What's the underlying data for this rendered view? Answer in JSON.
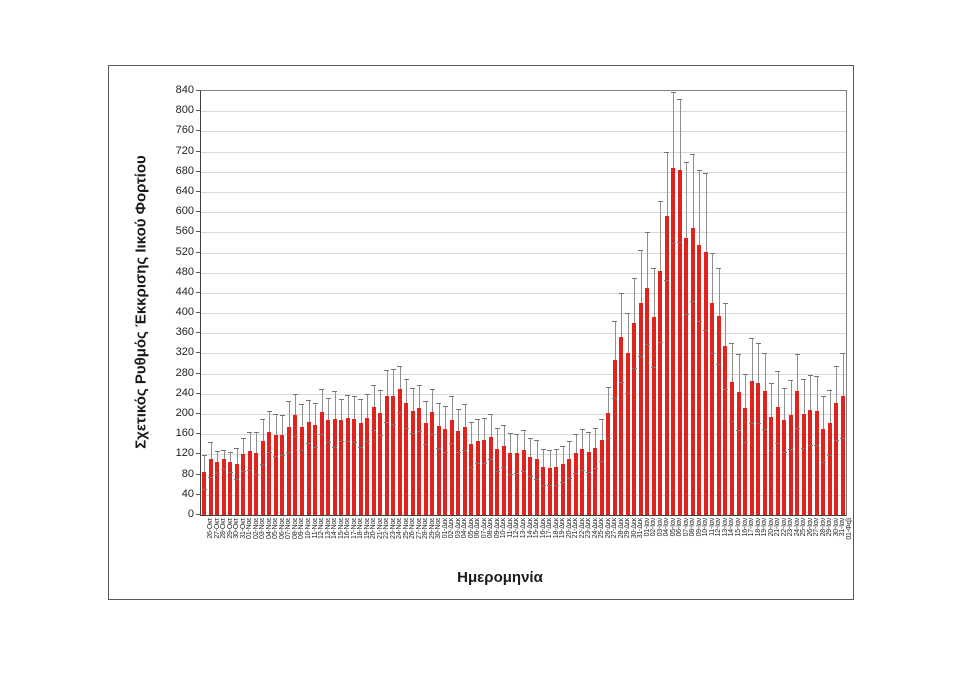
{
  "figure": {
    "background_color": "#ffffff",
    "frame_border_color": "#595959"
  },
  "chart_data": {
    "type": "bar",
    "title": "",
    "xlabel": "Ημερομηνία",
    "ylabel": "Σχετικός Ρυθμός Έκκρισης Ιικού Φορτίου",
    "ylim": [
      0,
      840
    ],
    "ytick_step": 40,
    "grid": true,
    "legend": false,
    "bar_color": "#e0231e",
    "error_bar_color": "#8f8f8f",
    "error_bars": "symmetric, values given as plus-minus deltas",
    "categories": [
      "26-Οκτ",
      "27-Οκτ",
      "28-Οκτ",
      "29-Οκτ",
      "30-Οκτ",
      "31-Οκτ",
      "01-Νοε",
      "02-Νοε",
      "03-Νοε",
      "04-Νοε",
      "05-Νοε",
      "06-Νοε",
      "07-Νοε",
      "08-Νοε",
      "09-Νοε",
      "10-Νοε",
      "11-Νοε",
      "12-Νοε",
      "13-Νοε",
      "14-Νοε",
      "15-Νοε",
      "16-Νοε",
      "17-Νοε",
      "18-Νοε",
      "19-Νοε",
      "20-Νοε",
      "21-Νοε",
      "22-Νοε",
      "23-Νοε",
      "24-Νοε",
      "25-Νοε",
      "26-Νοε",
      "27-Νοε",
      "28-Νοε",
      "29-Νοε",
      "30-Νοε",
      "01-Δεκ",
      "02-Δεκ",
      "03-Δεκ",
      "04-Δεκ",
      "05-Δεκ",
      "06-Δεκ",
      "07-Δεκ",
      "08-Δεκ",
      "09-Δεκ",
      "10-Δεκ",
      "11-Δεκ",
      "12-Δεκ",
      "13-Δεκ",
      "14-Δεκ",
      "15-Δεκ",
      "16-Δεκ",
      "17-Δεκ",
      "18-Δεκ",
      "19-Δεκ",
      "20-Δεκ",
      "21-Δεκ",
      "22-Δεκ",
      "23-Δεκ",
      "24-Δεκ",
      "25-Δεκ",
      "26-Δεκ",
      "27-Δεκ",
      "28-Δεκ",
      "29-Δεκ",
      "30-Δεκ",
      "31-Δεκ",
      "01-Ιαν",
      "02-Ιαν",
      "03-Ιαν",
      "04-Ιαν",
      "05-Ιαν",
      "06-Ιαν",
      "07-Ιαν",
      "08-Ιαν",
      "09-Ιαν",
      "10-Ιαν",
      "11-Ιαν",
      "12-Ιαν",
      "13-Ιαν",
      "14-Ιαν",
      "15-Ιαν",
      "16-Ιαν",
      "17-Ιαν",
      "18-Ιαν",
      "19-Ιαν",
      "20-Ιαν",
      "21-Ιαν",
      "22-Ιαν",
      "23-Ιαν",
      "24-Ιαν",
      "25-Ιαν",
      "26-Ιαν",
      "27-Ιαν",
      "28-Ιαν",
      "29-Ιαν",
      "30-Ιαν",
      "31-Ιαν",
      "01-Φεβ"
    ],
    "values": [
      85,
      110,
      105,
      110,
      105,
      102,
      120,
      127,
      123,
      146,
      165,
      158,
      158,
      175,
      198,
      174,
      185,
      178,
      205,
      188,
      190,
      188,
      192,
      190,
      182,
      193,
      213,
      203,
      236,
      235,
      250,
      221,
      207,
      212,
      183,
      205,
      177,
      170,
      189,
      167,
      174,
      140,
      147,
      148,
      155,
      130,
      137,
      122,
      122,
      128,
      115,
      110,
      95,
      94,
      95,
      101,
      110,
      122,
      130,
      125,
      133,
      148,
      203,
      308,
      352,
      321,
      381,
      420,
      449,
      392,
      483,
      592,
      688,
      683,
      549,
      569,
      534,
      522,
      420,
      395,
      335,
      263,
      243,
      212,
      266,
      261,
      245,
      195,
      214,
      188,
      199,
      245,
      201,
      208,
      207,
      170,
      183,
      222,
      236
    ],
    "error_deltas": [
      33,
      35,
      22,
      18,
      20,
      31,
      32,
      38,
      41,
      44,
      41,
      42,
      40,
      50,
      42,
      46,
      43,
      44,
      45,
      44,
      55,
      42,
      46,
      45,
      48,
      47,
      45,
      45,
      52,
      55,
      45,
      49,
      45,
      46,
      42,
      45,
      45,
      45,
      46,
      43,
      46,
      45,
      43,
      44,
      45,
      42,
      41,
      40,
      38,
      40,
      37,
      38,
      35,
      34,
      35,
      35,
      36,
      38,
      40,
      40,
      39,
      42,
      50,
      77,
      88,
      79,
      89,
      105,
      111,
      98,
      140,
      127,
      150,
      142,
      150,
      146,
      150,
      155,
      100,
      95,
      85,
      77,
      75,
      68,
      84,
      79,
      75,
      67,
      71,
      64,
      69,
      73,
      69,
      70,
      68,
      65,
      65,
      73,
      84
    ]
  }
}
